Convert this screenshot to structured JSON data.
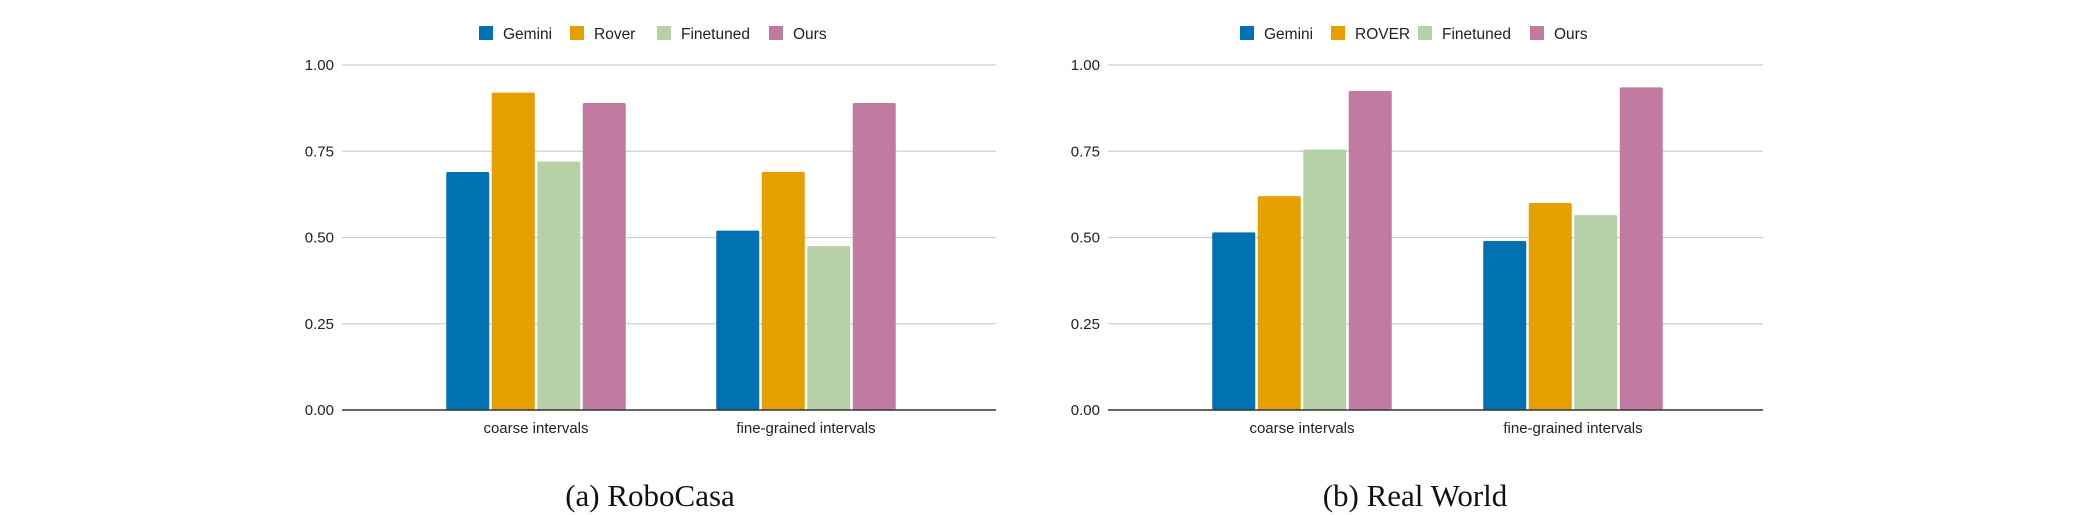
{
  "chart_data": [
    {
      "type": "bar",
      "caption": "(a) RoboCasa",
      "categories": [
        "coarse intervals",
        "fine-grained intervals"
      ],
      "series": [
        {
          "name": "Gemini",
          "color": "#0072B2",
          "values": [
            0.69,
            0.52
          ]
        },
        {
          "name": "Rover",
          "color": "#E69F00",
          "values": [
            0.92,
            0.69
          ]
        },
        {
          "name": "Finetuned",
          "color": "#B6D1A8",
          "values": [
            0.72,
            0.475
          ]
        },
        {
          "name": "Ours",
          "color": "#C27BA0",
          "values": [
            0.89,
            0.89
          ]
        }
      ],
      "ylim": [
        0,
        1
      ],
      "yticks": [
        "0.00",
        "0.25",
        "0.50",
        "0.75",
        "1.00"
      ],
      "grid": true,
      "legend": "top-center"
    },
    {
      "type": "bar",
      "caption": "(b) Real World",
      "categories": [
        "coarse intervals",
        "fine-grained intervals"
      ],
      "series": [
        {
          "name": "Gemini",
          "color": "#0072B2",
          "values": [
            0.515,
            0.49
          ]
        },
        {
          "name": "ROVER",
          "color": "#E69F00",
          "values": [
            0.62,
            0.6
          ]
        },
        {
          "name": "Finetuned",
          "color": "#B6D1A8",
          "values": [
            0.755,
            0.565
          ]
        },
        {
          "name": "Ours",
          "color": "#C27BA0",
          "values": [
            0.925,
            0.935
          ]
        }
      ],
      "ylim": [
        0,
        1
      ],
      "yticks": [
        "0.00",
        "0.25",
        "0.50",
        "0.75",
        "1.00"
      ],
      "grid": true,
      "legend": "top-center"
    }
  ]
}
